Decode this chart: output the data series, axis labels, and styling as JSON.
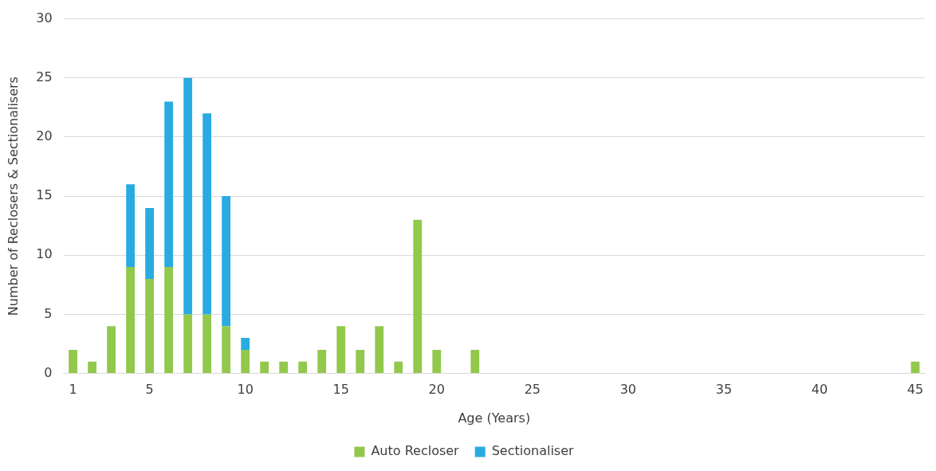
{
  "chart_data": {
    "type": "bar",
    "stacked": true,
    "xlabel": "Age (Years)",
    "ylabel": "Number of Reclosers & Sectionalisers",
    "x": [
      1,
      2,
      3,
      4,
      5,
      6,
      7,
      8,
      9,
      10,
      11,
      12,
      13,
      14,
      15,
      16,
      17,
      18,
      19,
      20,
      22,
      45
    ],
    "series": [
      {
        "name": "Auto Recloser",
        "color": "#92c84c",
        "values": [
          2,
          1,
          4,
          9,
          8,
          9,
          5,
          5,
          4,
          2,
          1,
          1,
          1,
          2,
          4,
          2,
          4,
          1,
          13,
          2,
          2,
          1
        ]
      },
      {
        "name": "Sectionaliser",
        "color": "#29abe2",
        "values": [
          null,
          null,
          null,
          7,
          6,
          14,
          20,
          17,
          11,
          1,
          null,
          null,
          null,
          null,
          null,
          null,
          null,
          null,
          null,
          null,
          null,
          null
        ]
      }
    ],
    "xlim": [
      0.5,
      45.5
    ],
    "xticks": [
      1,
      5,
      10,
      15,
      20,
      25,
      30,
      35,
      40,
      45
    ],
    "ylim": [
      0,
      30
    ],
    "yticks": [
      0,
      5,
      10,
      15,
      20,
      25,
      30
    ],
    "grid": "y",
    "legend": "bottom"
  }
}
